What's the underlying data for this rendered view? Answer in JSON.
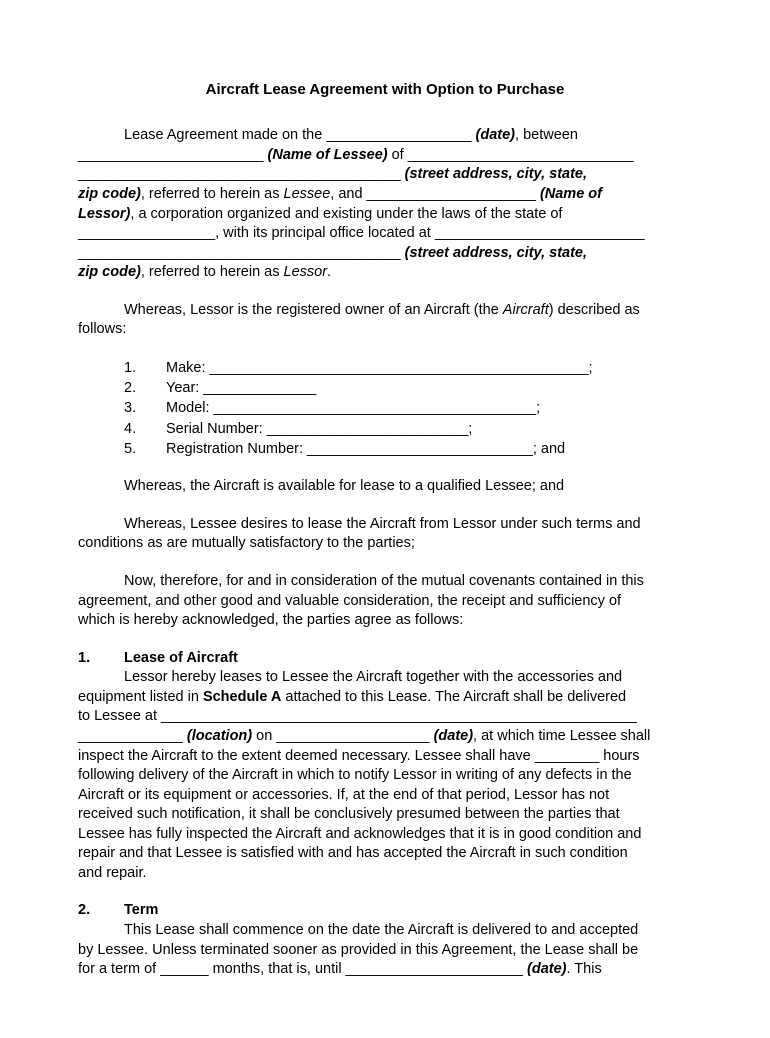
{
  "title": "Aircraft Lease Agreement with Option to Purchase",
  "intro": {
    "l1a": "Lease Agreement made on the __________________ ",
    "l1b": "(date)",
    "l1c": ", between",
    "l2a": "_______________________ ",
    "l2b": "(Name of Lessee)",
    "l2c": " of ____________________________",
    "l3a": "________________________________________ ",
    "l3b": "(street address, city, state,",
    "l4a": "zip code)",
    "l4b": ", referred to herein as ",
    "l4c": "Lessee",
    "l4d": ", and _____________________ ",
    "l4e": "(Name of",
    "l5a": "Lessor)",
    "l5b": ", a corporation organized and existing under the laws of the state of",
    "l6a": "_________________, with its principal office located at __________________________",
    "l7a": "________________________________________ ",
    "l7b": "(street address, city, state,",
    "l8a": "zip code)",
    "l8b": ", referred to herein as ",
    "l8c": "Lessor",
    "l8d": "."
  },
  "whereas1a": "Whereas, Lessor is the registered owner of an Aircraft (the ",
  "whereas1b": "Aircraft",
  "whereas1c": ") described as",
  "whereas1d": "follows:",
  "list": {
    "n1": "1.",
    "t1": "Make: _______________________________________________;",
    "n2": "2.",
    "t2": "Year: ______________",
    "n3": "3.",
    "t3": "Model: ________________________________________;",
    "n4": "4.",
    "t4": "Serial Number: _________________________;",
    "n5": "5.",
    "t5": "Registration Number: ____________________________; and"
  },
  "whereas2": "Whereas, the Aircraft is available for lease to a qualified Lessee; and",
  "whereas3a": "Whereas, Lessee desires to lease the Aircraft from Lessor under such terms and",
  "whereas3b": "conditions as are mutually satisfactory to the parties;",
  "now1": "Now, therefore, for and in consideration of the mutual covenants contained in this",
  "now2": "agreement, and other good and valuable consideration, the receipt and sufficiency of",
  "now3": "which is hereby acknowledged, the parties agree as follows:",
  "sec1": {
    "num": "1.",
    "title": "Lease of Aircraft",
    "b1": "Lessor hereby leases to Lessee the Aircraft together with the accessories and",
    "b2a": "equipment listed in ",
    "b2b": "Schedule A",
    "b2c": " attached to this Lease. The Aircraft shall be delivered",
    "b3": "to Lessee at ___________________________________________________________",
    "b4a": "_____________ ",
    "b4b": "(location)",
    "b4c": " on ___________________ ",
    "b4d": "(date)",
    "b4e": ", at which time Lessee shall",
    "b5": "inspect the Aircraft to the extent deemed necessary. Lessee shall have ________ hours",
    "b6": "following delivery of the Aircraft in which to notify Lessor in writing of any defects in the",
    "b7": "Aircraft or its equipment or accessories. If, at the end of that period, Lessor has not",
    "b8": "received such notification, it shall be conclusively presumed between the parties that",
    "b9": "Lessee has fully inspected the Aircraft and acknowledges that it is in good condition and",
    "b10": "repair and that Lessee is satisfied with and has accepted the Aircraft in such condition",
    "b11": "and repair."
  },
  "sec2": {
    "num": "2.",
    "title": "Term",
    "b1": "This Lease shall commence on the date the Aircraft is delivered to and accepted",
    "b2": "by Lessee. Unless terminated sooner as provided in this Agreement, the Lease shall be",
    "b3a": "for a term of ______ months, that is, until ______________________ ",
    "b3b": "(date)",
    "b3c": ". This"
  }
}
